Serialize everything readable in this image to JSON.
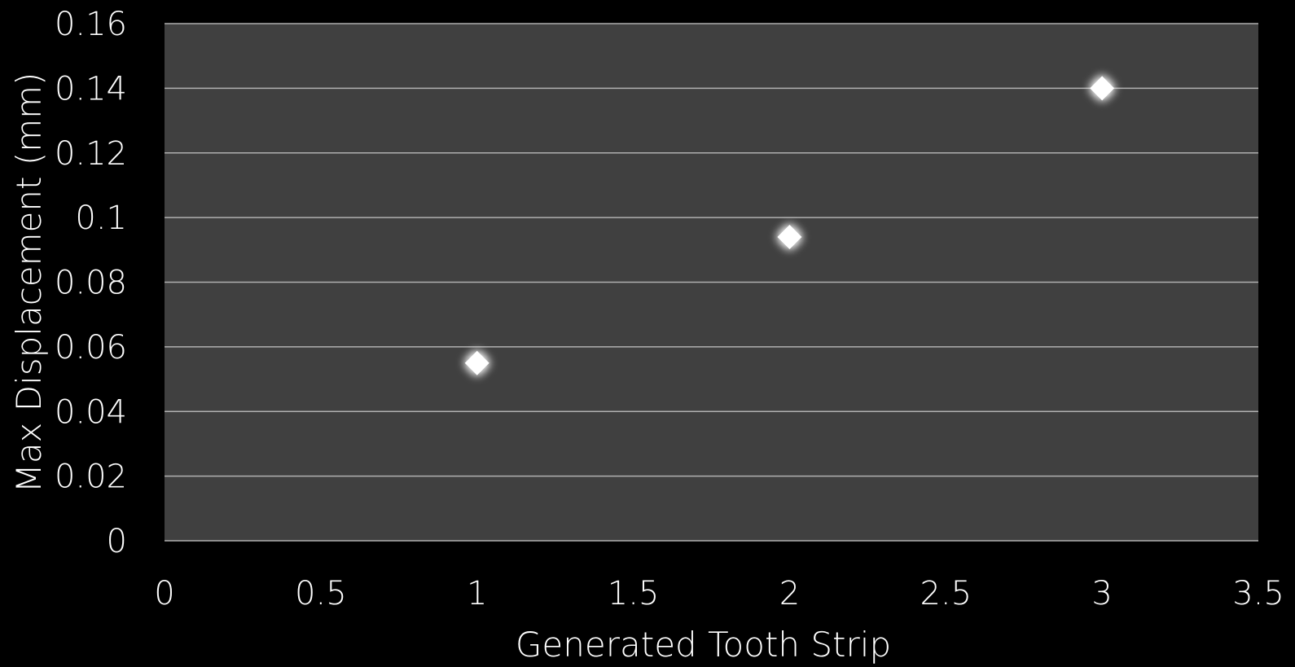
{
  "chart_data": {
    "type": "scatter",
    "title": "",
    "xlabel": "Generated Tooth Strip",
    "ylabel": "Max Displacement (mm)",
    "xlim": [
      0,
      3.5
    ],
    "ylim": [
      0,
      0.16
    ],
    "x_ticks": [
      0,
      0.5,
      1,
      1.5,
      2,
      2.5,
      3,
      3.5
    ],
    "x_tick_labels": [
      "0",
      "0.5",
      "1",
      "1.5",
      "2",
      "2.5",
      "3",
      "3.5"
    ],
    "y_ticks": [
      0,
      0.02,
      0.04,
      0.06,
      0.08,
      0.1,
      0.12,
      0.14,
      0.16
    ],
    "y_tick_labels": [
      "0",
      "0.02",
      "0.04",
      "0.06",
      "0.08",
      "0.1",
      "0.12",
      "0.14",
      "0.16"
    ],
    "grid": "horizontal",
    "legend": "none",
    "series": [
      {
        "marker": "diamond",
        "x": [
          1,
          2,
          3
        ],
        "y": [
          0.055,
          0.094,
          0.14
        ]
      }
    ],
    "colors": {
      "background": "#000000",
      "plot_area": "#404040",
      "gridline": "#b0b0b0",
      "text": "#ffffff",
      "marker": "#ffffff"
    }
  }
}
